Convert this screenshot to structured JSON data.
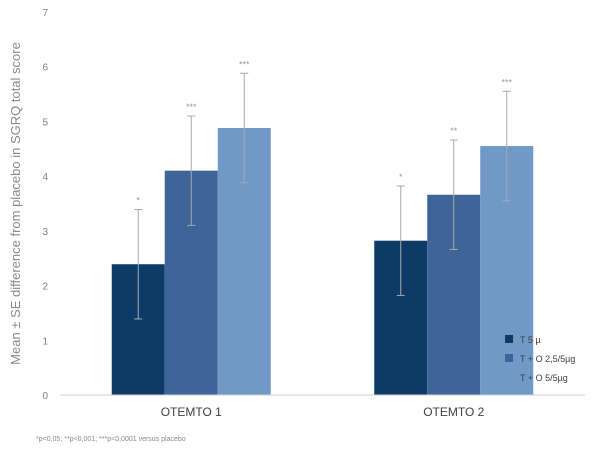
{
  "chart_data": {
    "type": "bar",
    "title": "",
    "ylabel": "Mean ± SE difference from placebo in SGRQ total score",
    "xlabel": "",
    "ylim": [
      0,
      7
    ],
    "yticks": [
      0,
      1,
      2,
      3,
      4,
      5,
      6,
      7
    ],
    "categories": [
      "OTEMTO 1",
      "OTEMTO 2"
    ],
    "grid": false,
    "legend_position": "bottom-right",
    "series": [
      {
        "name": "T 5 µ",
        "color": "#0d3a66",
        "values": [
          2.39,
          2.82
        ],
        "errors": [
          1.0,
          1.0
        ],
        "significance": [
          "*",
          "*"
        ]
      },
      {
        "name": "T + O 2,5/5µg",
        "color": "#3f6498",
        "values": [
          4.1,
          3.66
        ],
        "errors": [
          1.0,
          1.0
        ],
        "significance": [
          "***",
          "**"
        ]
      },
      {
        "name": "T + O 5/5µg",
        "color": "#7099c8",
        "values": [
          4.88,
          4.55
        ],
        "errors": [
          1.0,
          1.0
        ],
        "significance": [
          "***",
          "***"
        ]
      }
    ],
    "footnote": "*p<0,05; **p<0,001; ***p<0,0001 versus placebo"
  }
}
